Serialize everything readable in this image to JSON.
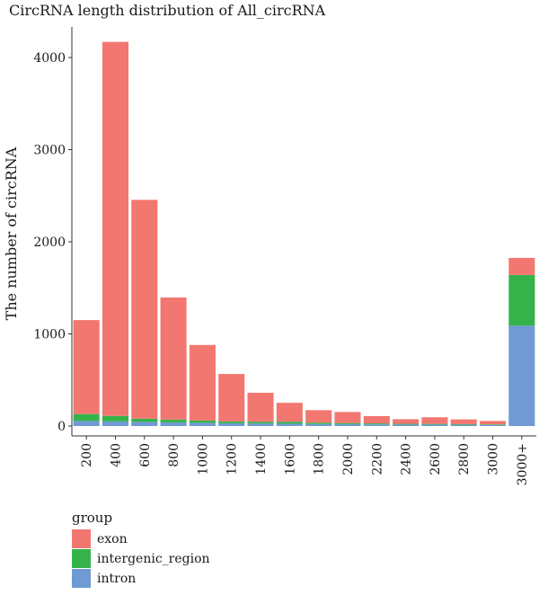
{
  "chart_data": {
    "type": "bar",
    "stacked": true,
    "title": "CircRNA length distribution of All_circRNA",
    "xlabel": "",
    "ylabel": "The number of circRNA",
    "categories": [
      "200",
      "400",
      "600",
      "800",
      "1000",
      "1200",
      "1400",
      "1600",
      "1800",
      "2000",
      "2200",
      "2400",
      "2600",
      "2800",
      "3000",
      "3000+"
    ],
    "ylim": [
      0,
      4300
    ],
    "yticks": [
      0,
      1000,
      2000,
      3000,
      4000
    ],
    "grid": false,
    "legend_position": "bottom-left",
    "legend_title": "group",
    "series": [
      {
        "name": "intron",
        "color": "#6F9AD3",
        "values": [
          55,
          50,
          45,
          40,
          35,
          30,
          28,
          25,
          22,
          20,
          18,
          16,
          15,
          14,
          12,
          1090
        ]
      },
      {
        "name": "intergenic_region",
        "color": "#35B34A",
        "values": [
          75,
          60,
          35,
          30,
          25,
          20,
          18,
          22,
          15,
          12,
          10,
          8,
          8,
          6,
          6,
          550
        ]
      },
      {
        "name": "exon",
        "color": "#F27770",
        "values": [
          1020,
          4060,
          2375,
          1325,
          820,
          515,
          315,
          205,
          135,
          120,
          80,
          50,
          72,
          52,
          37,
          185
        ]
      }
    ],
    "legend_order": [
      "exon",
      "intergenic_region",
      "intron"
    ]
  }
}
